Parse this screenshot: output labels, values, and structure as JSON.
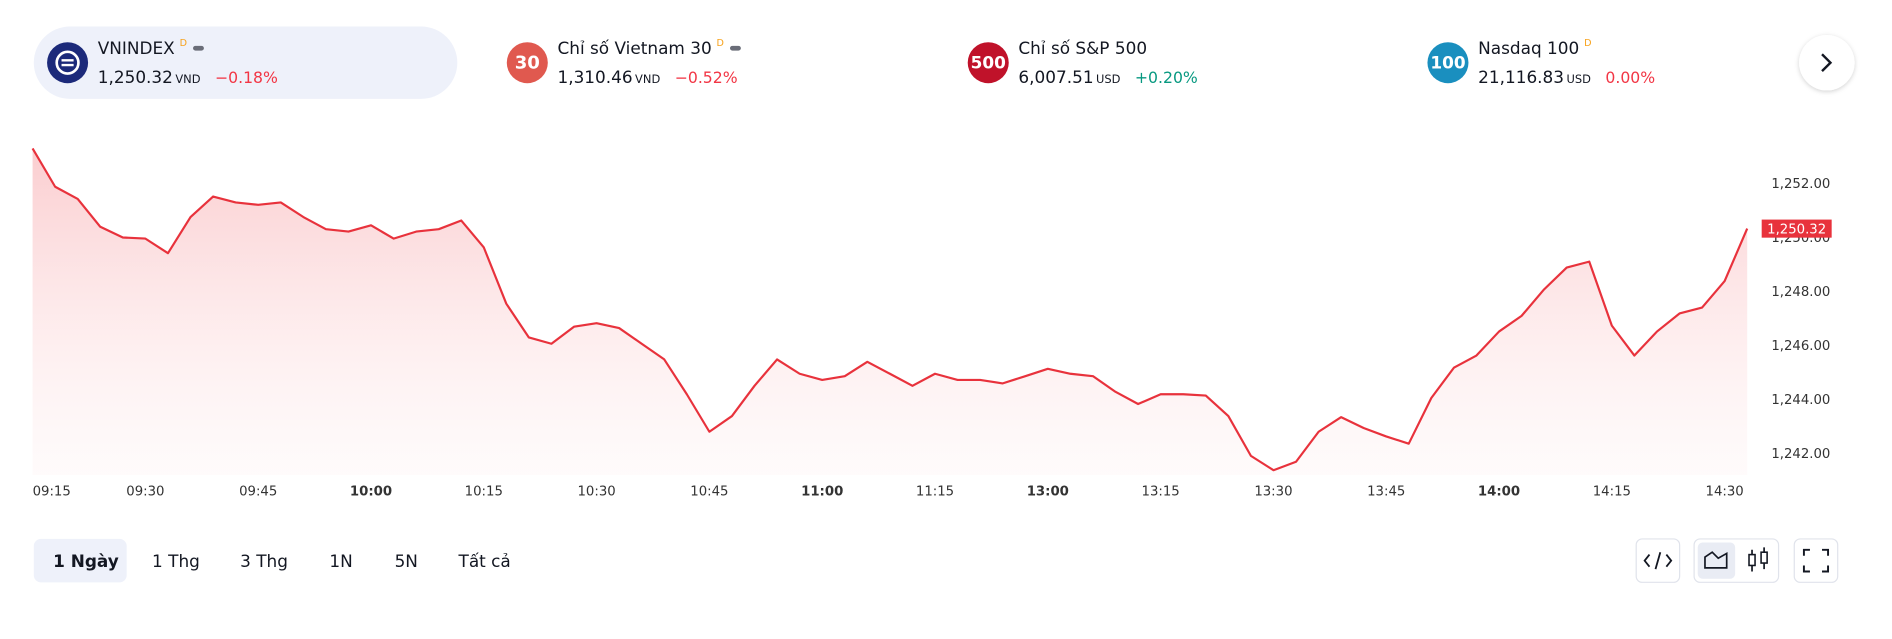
{
  "tickers": [
    {
      "name": "VNINDEX",
      "flag": "D",
      "price": "1,250.32",
      "currency": "VND",
      "change": "−0.18%",
      "change_color": "#f23645",
      "badge_color": "#1c2a7a"
    },
    {
      "badge": "30",
      "name": "Chỉ số Vietnam 30",
      "flag": "D",
      "price": "1,310.46",
      "currency": "VND",
      "change": "−0.52%",
      "change_color": "#f23645",
      "badge_color": "#e0594f"
    },
    {
      "badge": "500",
      "name": "Chỉ số S&P 500",
      "price": "6,007.51",
      "currency": "USD",
      "change": "+0.20%",
      "change_color": "#089981",
      "badge_color": "#c0122a"
    },
    {
      "badge": "100",
      "name": "Nasdaq 100",
      "flag": "D",
      "price": "21,116.83",
      "currency": "USD",
      "change": "0.00%",
      "change_color": "#f23645",
      "badge_color": "#1a8fbf"
    }
  ],
  "chart_data": {
    "type": "line",
    "color": "#e8323c",
    "categories": [
      "09:15",
      null,
      null,
      null,
      null,
      "09:30",
      null,
      null,
      null,
      null,
      "09:45",
      null,
      null,
      null,
      null,
      "10:00",
      null,
      null,
      null,
      null,
      "10:15",
      null,
      null,
      null,
      null,
      "10:30",
      null,
      null,
      null,
      null,
      "10:45",
      null,
      null,
      null,
      null,
      "11:00",
      null,
      null,
      null,
      null,
      "11:15",
      null,
      null,
      null,
      null,
      "13:00",
      null,
      null,
      null,
      null,
      "13:15",
      null,
      null,
      null,
      null,
      "13:30",
      null,
      null,
      null,
      null,
      "13:45",
      null,
      null,
      null,
      null,
      "14:00",
      null,
      null,
      null,
      null,
      "14:15",
      null,
      null,
      null,
      null,
      "14:30",
      null
    ],
    "values": [
      1253.29,
      1251.87,
      1251.42,
      1250.39,
      1249.99,
      1249.95,
      1249.41,
      1250.75,
      1251.51,
      1251.29,
      1251.2,
      1251.29,
      1250.75,
      1250.3,
      1250.21,
      1250.44,
      1249.95,
      1250.21,
      1250.3,
      1250.62,
      1249.63,
      1247.54,
      1246.29,
      1246.06,
      1246.69,
      1246.82,
      1246.64,
      1246.06,
      1245.48,
      1244.19,
      1242.8,
      1243.38,
      1244.5,
      1245.48,
      1244.95,
      1244.72,
      1244.86,
      1245.39,
      1244.95,
      1244.5,
      1244.95,
      1244.72,
      1244.72,
      1244.59,
      1244.86,
      1245.13,
      1244.95,
      1244.86,
      1244.28,
      1243.83,
      1244.19,
      1244.19,
      1244.14,
      1243.38,
      1241.91,
      1241.38,
      1241.69,
      1242.8,
      1243.34,
      1242.94,
      1242.63,
      1242.36,
      1244.05,
      1245.17,
      1245.62,
      1246.51,
      1247.09,
      1248.07,
      1248.88,
      1249.1,
      1246.73,
      1245.62,
      1246.51,
      1247.18,
      1247.4,
      1248.38,
      1250.32
    ],
    "ylim": [
      1241.2,
      1253.4
    ],
    "yticks": [
      {
        "value": 1242,
        "label": "1,242.00"
      },
      {
        "value": 1244,
        "label": "1,244.00"
      },
      {
        "value": 1246,
        "label": "1,246.00"
      },
      {
        "value": 1248,
        "label": "1,248.00"
      },
      {
        "value": 1250,
        "label": "1,250.00"
      },
      {
        "value": 1252,
        "label": "1,252.00"
      }
    ],
    "last_label": {
      "value": 1250.32,
      "label": "1,250.32"
    }
  },
  "range_tabs": [
    "1 Ngày",
    "1 Thg",
    "3 Thg",
    "1N",
    "5N",
    "Tất cả"
  ]
}
